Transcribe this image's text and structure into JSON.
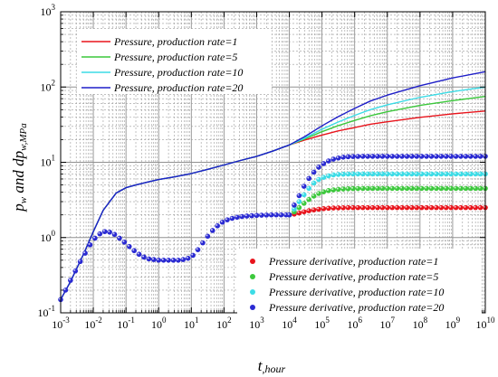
{
  "chart_data": {
    "type": "line",
    "x_scale": "log",
    "y_scale": "log",
    "xlim": [
      0.001,
      10000000000
    ],
    "ylim": [
      0.1,
      1000
    ],
    "grid": true,
    "xlabel": {
      "main": "t",
      "sub": ",hour"
    },
    "ylabel": {
      "p": "p",
      "p_sub": "w",
      "mid": " and dp",
      "dp_sub": "w,MPa"
    },
    "x_ticks": [
      {
        "value": 0.001,
        "base": "10",
        "exp": "-3"
      },
      {
        "value": 0.01,
        "base": "10",
        "exp": "-2"
      },
      {
        "value": 0.1,
        "base": "10",
        "exp": "-1"
      },
      {
        "value": 1,
        "base": "10",
        "exp": "0"
      },
      {
        "value": 10,
        "base": "10",
        "exp": "1"
      },
      {
        "value": 100,
        "base": "10",
        "exp": "2"
      },
      {
        "value": 1000,
        "base": "10",
        "exp": "3"
      },
      {
        "value": 10000,
        "base": "10",
        "exp": "4"
      },
      {
        "value": 100000,
        "base": "10",
        "exp": "5"
      },
      {
        "value": 1000000,
        "base": "10",
        "exp": "6"
      },
      {
        "value": 10000000,
        "base": "10",
        "exp": "7"
      },
      {
        "value": 100000000,
        "base": "10",
        "exp": "8"
      },
      {
        "value": 1000000000,
        "base": "10",
        "exp": "9"
      },
      {
        "value": 10000000000,
        "base": "10",
        "exp": "10"
      }
    ],
    "y_ticks": [
      {
        "value": 0.1,
        "base": "10",
        "exp": "-1"
      },
      {
        "value": 1,
        "base": "10",
        "exp": "0"
      },
      {
        "value": 10,
        "base": "10",
        "exp": "1"
      },
      {
        "value": 100,
        "base": "10",
        "exp": "2"
      },
      {
        "value": 1000,
        "base": "10",
        "exp": "3"
      }
    ],
    "line_series": [
      {
        "name": "Pressure, production rate=1",
        "color": "#e8141c",
        "x": [
          0.001,
          0.002,
          0.005,
          0.01,
          0.02,
          0.05,
          0.1,
          0.2,
          0.5,
          1,
          3,
          10,
          30,
          100,
          300,
          1000,
          3000,
          10000,
          30000,
          100000,
          300000,
          1000000,
          3000000,
          10000000,
          100000000,
          1000000000,
          10000000000
        ],
        "y": [
          0.15,
          0.26,
          0.6,
          1.2,
          2.3,
          3.9,
          4.6,
          5.0,
          5.5,
          5.9,
          6.4,
          7.1,
          8.0,
          9.2,
          10.5,
          12.0,
          14.0,
          17.0,
          19.8,
          23.0,
          26.0,
          29.0,
          32.0,
          34.5,
          39.5,
          44.0,
          48.0
        ]
      },
      {
        "name": "Pressure, production rate=5",
        "color": "#3cc83c",
        "x": [
          0.001,
          0.002,
          0.005,
          0.01,
          0.02,
          0.05,
          0.1,
          0.2,
          0.5,
          1,
          3,
          10,
          30,
          100,
          300,
          1000,
          3000,
          10000,
          30000,
          100000,
          300000,
          1000000,
          3000000,
          10000000,
          100000000,
          1000000000,
          10000000000
        ],
        "y": [
          0.15,
          0.26,
          0.6,
          1.2,
          2.3,
          3.9,
          4.6,
          5.0,
          5.5,
          5.9,
          6.4,
          7.1,
          8.0,
          9.2,
          10.5,
          12.0,
          14.0,
          17.0,
          20.5,
          25.5,
          30.5,
          36.0,
          41.5,
          47.0,
          57.0,
          66.0,
          75.0
        ]
      },
      {
        "name": "Pressure, production rate=10",
        "color": "#3cdce6",
        "x": [
          0.001,
          0.002,
          0.005,
          0.01,
          0.02,
          0.05,
          0.1,
          0.2,
          0.5,
          1,
          3,
          10,
          30,
          100,
          300,
          1000,
          3000,
          10000,
          30000,
          100000,
          300000,
          1000000,
          3000000,
          10000000,
          100000000,
          1000000000,
          10000000000
        ],
        "y": [
          0.15,
          0.26,
          0.6,
          1.2,
          2.3,
          3.9,
          4.6,
          5.0,
          5.5,
          5.9,
          6.4,
          7.1,
          8.0,
          9.2,
          10.5,
          12.0,
          14.0,
          17.0,
          21.0,
          27.5,
          34.0,
          42.0,
          50.0,
          58.0,
          73.0,
          87.0,
          100.0
        ]
      },
      {
        "name": "Pressure, production rate=20",
        "color": "#1e1ec8",
        "x": [
          0.001,
          0.002,
          0.005,
          0.01,
          0.02,
          0.05,
          0.1,
          0.2,
          0.5,
          1,
          3,
          10,
          30,
          100,
          300,
          1000,
          3000,
          10000,
          30000,
          100000,
          300000,
          1000000,
          3000000,
          10000000,
          100000000,
          1000000000,
          10000000000
        ],
        "y": [
          0.15,
          0.26,
          0.6,
          1.2,
          2.3,
          3.9,
          4.6,
          5.0,
          5.5,
          5.9,
          6.4,
          7.1,
          8.0,
          9.2,
          10.5,
          12.0,
          14.0,
          17.0,
          22.0,
          30.5,
          40.0,
          52.0,
          65.0,
          78.0,
          104.0,
          132.0,
          160.0
        ]
      }
    ],
    "scatter_series": [
      {
        "name": "Pressure derivative, production rate=1",
        "color": "#e8141c",
        "x": [
          10000,
          14125,
          19953,
          28184,
          39811,
          56234,
          79433,
          112202,
          158489,
          223872,
          316228,
          446684,
          630957,
          891251,
          1258925,
          1778279,
          2511886,
          3548134,
          5011872,
          7079458,
          10000000,
          14125375,
          19952623,
          28183829,
          39810717,
          56234133,
          79432823,
          112201845,
          158489319,
          223872114,
          316227766,
          446683592,
          630957344,
          891250938,
          1258925412,
          1778279410,
          2511886432,
          3548133892,
          5011872336,
          7079457844,
          10000000000
        ],
        "y": [
          2.0,
          2.05,
          2.12,
          2.2,
          2.27,
          2.33,
          2.38,
          2.42,
          2.45,
          2.47,
          2.48,
          2.49,
          2.5,
          2.5,
          2.5,
          2.5,
          2.5,
          2.5,
          2.5,
          2.5,
          2.5,
          2.5,
          2.5,
          2.5,
          2.5,
          2.5,
          2.5,
          2.5,
          2.5,
          2.5,
          2.5,
          2.5,
          2.5,
          2.5,
          2.5,
          2.5,
          2.5,
          2.5,
          2.5,
          2.5,
          2.5
        ]
      },
      {
        "name": "Pressure derivative, production rate=5",
        "color": "#3cc83c",
        "x": [
          10000,
          14125,
          19953,
          28184,
          39811,
          56234,
          79433,
          112202,
          158489,
          223872,
          316228,
          446684,
          630957,
          891251,
          1258925,
          1778279,
          2511886,
          3548134,
          5011872,
          7079458,
          10000000,
          14125375,
          19952623,
          28183829,
          39810717,
          56234133,
          79432823,
          112201845,
          158489319,
          223872114,
          316227766,
          446683592,
          630957344,
          891250938,
          1258925412,
          1778279410,
          2511886432,
          3548133892,
          5011872336,
          7079457844,
          10000000000
        ],
        "y": [
          2.0,
          2.2,
          2.5,
          2.85,
          3.2,
          3.55,
          3.85,
          4.05,
          4.2,
          4.3,
          4.37,
          4.42,
          4.45,
          4.47,
          4.48,
          4.49,
          4.5,
          4.5,
          4.5,
          4.5,
          4.5,
          4.5,
          4.5,
          4.5,
          4.5,
          4.5,
          4.5,
          4.5,
          4.5,
          4.5,
          4.5,
          4.5,
          4.5,
          4.5,
          4.5,
          4.5,
          4.5,
          4.5,
          4.5,
          4.5,
          4.5
        ]
      },
      {
        "name": "Pressure derivative, production rate=10",
        "color": "#3cdce6",
        "x": [
          10000,
          14125,
          19953,
          28184,
          39811,
          56234,
          79433,
          112202,
          158489,
          223872,
          316228,
          446684,
          630957,
          891251,
          1258925,
          1778279,
          2511886,
          3548134,
          5011872,
          7079458,
          10000000,
          14125375,
          19952623,
          28183829,
          39810717,
          56234133,
          79432823,
          112201845,
          158489319,
          223872114,
          316227766,
          446683592,
          630957344,
          891250938,
          1258925412,
          1778279410,
          2511886432,
          3548133892,
          5011872336,
          7079457844,
          10000000000
        ],
        "y": [
          2.0,
          2.4,
          3.0,
          3.7,
          4.5,
          5.3,
          5.9,
          6.3,
          6.6,
          6.8,
          6.9,
          6.95,
          6.98,
          7.0,
          7.0,
          7.0,
          7.0,
          7.0,
          7.0,
          7.0,
          7.0,
          7.0,
          7.0,
          7.0,
          7.0,
          7.0,
          7.0,
          7.0,
          7.0,
          7.0,
          7.0,
          7.0,
          7.0,
          7.0,
          7.0,
          7.0,
          7.0,
          7.0,
          7.0,
          7.0,
          7.0
        ]
      },
      {
        "name": "Pressure derivative, production rate=20",
        "color": "#2a2ad2",
        "x": [
          0.001,
          0.00141,
          0.002,
          0.00282,
          0.00398,
          0.00562,
          0.00794,
          0.01122,
          0.01585,
          0.02239,
          0.03162,
          0.04467,
          0.0631,
          0.08913,
          0.12589,
          0.17783,
          0.25119,
          0.35481,
          0.50119,
          0.70795,
          1,
          1.41254,
          1.99526,
          2.81838,
          3.98107,
          5.62341,
          7.94328,
          11.22018,
          15.84893,
          22.38721,
          31.62278,
          44.66836,
          63.09573,
          89.12509,
          125.89254,
          177.82794,
          251.18864,
          354.81339,
          501.18723,
          707.94578,
          1000,
          1412.54,
          1995.26,
          2818.38,
          3981.07,
          5623.41,
          7943.28,
          10000,
          14125,
          19953,
          28184,
          39811,
          56234,
          79433,
          112202,
          158489,
          223872,
          316228,
          446684,
          630957,
          891251,
          1258925,
          1778279,
          2511886,
          3548134,
          5011872,
          7079458,
          10000000,
          14125375,
          19952623,
          28183829,
          39810717,
          56234133,
          79432823,
          112201845,
          158489319,
          223872114,
          316227766,
          446683592,
          630957344,
          891250938,
          1258925412,
          1778279410,
          2511886432,
          3548133892,
          5011872336,
          7079457844,
          10000000000
        ],
        "y": [
          0.15,
          0.2,
          0.27,
          0.36,
          0.48,
          0.62,
          0.8,
          0.98,
          1.12,
          1.2,
          1.18,
          1.1,
          0.98,
          0.87,
          0.76,
          0.67,
          0.6,
          0.55,
          0.52,
          0.51,
          0.5,
          0.5,
          0.5,
          0.5,
          0.5,
          0.51,
          0.53,
          0.58,
          0.69,
          0.85,
          1.04,
          1.24,
          1.43,
          1.6,
          1.72,
          1.8,
          1.86,
          1.9,
          1.93,
          1.95,
          1.97,
          1.98,
          1.99,
          2.0,
          2.0,
          2.0,
          2.0,
          2.0,
          2.7,
          3.6,
          4.8,
          6.1,
          7.4,
          8.6,
          9.6,
          10.4,
          11.0,
          11.4,
          11.7,
          11.85,
          11.93,
          11.97,
          12.0,
          12.0,
          12.0,
          12.0,
          12.0,
          12.0,
          12.0,
          12.0,
          12.0,
          12.0,
          12.0,
          12.0,
          12.0,
          12.0,
          12.0,
          12.0,
          12.0,
          12.0,
          12.0,
          12.0,
          12.0,
          12.0,
          12.0,
          12.0,
          12.0,
          12.0
        ]
      }
    ],
    "legend_lines_position": "top-left",
    "legend_points_position": "bottom-right"
  }
}
